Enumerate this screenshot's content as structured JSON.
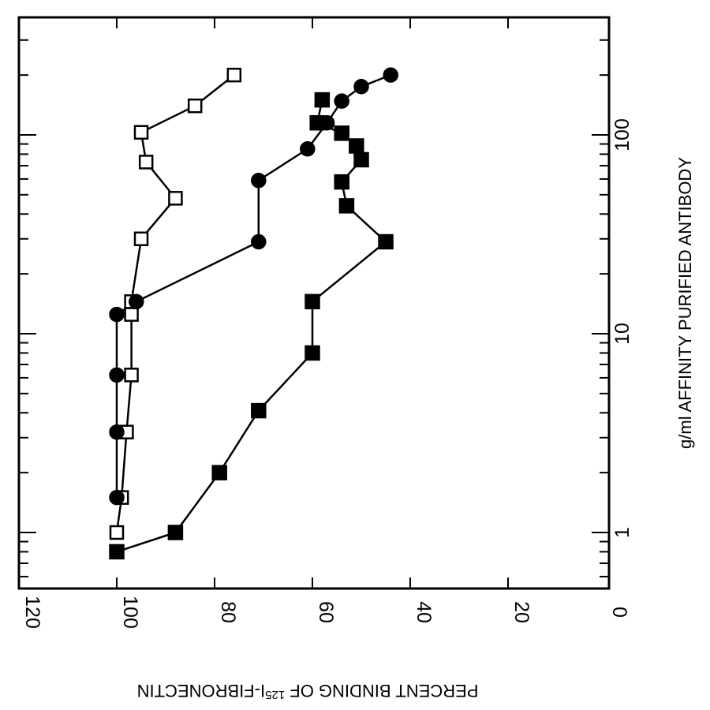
{
  "chart_data": {
    "type": "line",
    "xscale": "log",
    "xlabel": "g/ml AFFINITY PURIFIED ANTIBODY",
    "ylabel_prefix": "PERCENT BINDING OF ",
    "ylabel_superscript": "125",
    "ylabel_suffix": "I-FIBRONECTIN",
    "xlim": [
      0.5,
      500
    ],
    "ylim": [
      0,
      120
    ],
    "xticks": [
      1,
      10,
      100
    ],
    "xtick_labels": [
      "1",
      "10",
      "100"
    ],
    "yticks": [
      0,
      20,
      40,
      60,
      80,
      100,
      120
    ],
    "ytick_labels": [
      "0",
      "20",
      "40",
      "60",
      "80",
      "100",
      "120"
    ],
    "grid": false,
    "series": [
      {
        "marker": "open-square",
        "points": [
          {
            "x": 1.0,
            "y": 100
          },
          {
            "x": 1.5,
            "y": 99
          },
          {
            "x": 3.2,
            "y": 98
          },
          {
            "x": 6.2,
            "y": 97
          },
          {
            "x": 12.5,
            "y": 97
          },
          {
            "x": 14.5,
            "y": 97
          },
          {
            "x": 30,
            "y": 95
          },
          {
            "x": 48,
            "y": 88
          },
          {
            "x": 73,
            "y": 94
          },
          {
            "x": 103,
            "y": 95
          },
          {
            "x": 140,
            "y": 84
          },
          {
            "x": 200,
            "y": 76
          }
        ]
      },
      {
        "marker": "filled-circle",
        "points": [
          {
            "x": 1.5,
            "y": 100
          },
          {
            "x": 3.2,
            "y": 100
          },
          {
            "x": 6.2,
            "y": 100
          },
          {
            "x": 12.5,
            "y": 100
          },
          {
            "x": 14.5,
            "y": 96
          },
          {
            "x": 29,
            "y": 71
          },
          {
            "x": 59,
            "y": 71
          },
          {
            "x": 85,
            "y": 61
          },
          {
            "x": 115,
            "y": 57
          },
          {
            "x": 148,
            "y": 54
          },
          {
            "x": 175,
            "y": 50
          },
          {
            "x": 200,
            "y": 44
          }
        ]
      },
      {
        "marker": "filled-square",
        "points": [
          {
            "x": 0.8,
            "y": 100
          },
          {
            "x": 1.0,
            "y": 88
          },
          {
            "x": 2.0,
            "y": 79
          },
          {
            "x": 4.1,
            "y": 71
          },
          {
            "x": 8.0,
            "y": 60
          },
          {
            "x": 14.5,
            "y": 60
          },
          {
            "x": 29,
            "y": 45
          },
          {
            "x": 44,
            "y": 53
          },
          {
            "x": 58,
            "y": 54
          },
          {
            "x": 75,
            "y": 50
          },
          {
            "x": 88,
            "y": 51
          },
          {
            "x": 102,
            "y": 54
          },
          {
            "x": 115,
            "y": 59
          },
          {
            "x": 150,
            "y": 58
          }
        ]
      }
    ]
  }
}
